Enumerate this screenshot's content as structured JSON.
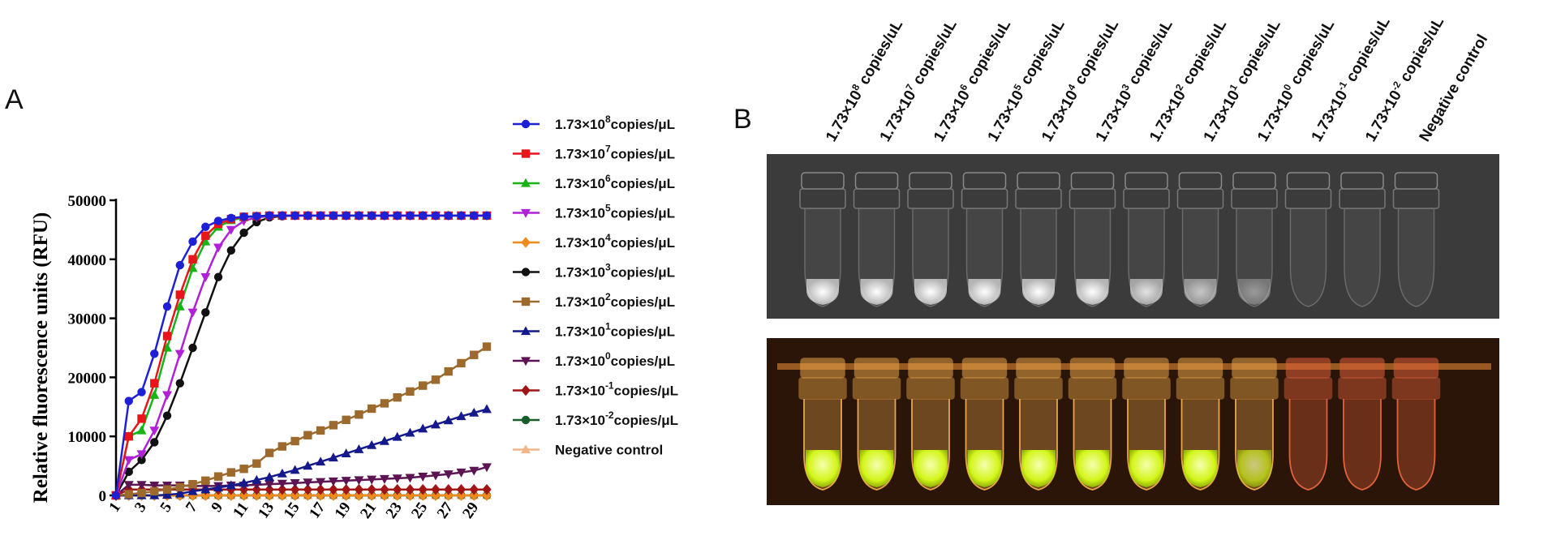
{
  "panels": {
    "a_label": "A",
    "b_label": "B"
  },
  "chart_data": {
    "type": "line",
    "ylabel": "Relative fluorescence units (RFU)",
    "xlabel": "",
    "xlim": [
      1,
      30
    ],
    "ylim": [
      0,
      50000
    ],
    "x_ticks": [
      1,
      3,
      5,
      7,
      9,
      11,
      13,
      15,
      17,
      19,
      21,
      23,
      25,
      27,
      29
    ],
    "y_ticks": [
      0,
      10000,
      20000,
      30000,
      40000,
      50000
    ],
    "legend_position": "right",
    "grid": false,
    "series": [
      {
        "name": "1.73×10",
        "exp": "8",
        "unit": "copies/μL",
        "color": "#1f1fd6",
        "marker": "circle",
        "values": [
          0,
          16000,
          17500,
          24000,
          32000,
          39000,
          43000,
          45500,
          46500,
          47000,
          47200,
          47300,
          47400,
          47400,
          47400,
          47400,
          47400,
          47400,
          47400,
          47400,
          47400,
          47400,
          47400,
          47400,
          47400,
          47400,
          47400,
          47400,
          47400,
          47400
        ]
      },
      {
        "name": "1.73×10",
        "exp": "7",
        "unit": "copies/μL",
        "color": "#e8151b",
        "marker": "square",
        "values": [
          0,
          10000,
          13000,
          19000,
          27000,
          34000,
          40000,
          44000,
          46000,
          46800,
          47200,
          47300,
          47400,
          47400,
          47400,
          47400,
          47400,
          47400,
          47400,
          47400,
          47400,
          47400,
          47400,
          47400,
          47400,
          47400,
          47400,
          47400,
          47400,
          47400
        ]
      },
      {
        "name": "1.73×10",
        "exp": "6",
        "unit": "copies/μL",
        "color": "#17b317",
        "marker": "triangle-up",
        "values": [
          0,
          10000,
          11000,
          17000,
          25000,
          32000,
          38500,
          43000,
          45500,
          46600,
          47100,
          47300,
          47400,
          47400,
          47400,
          47400,
          47400,
          47400,
          47400,
          47400,
          47400,
          47400,
          47400,
          47400,
          47400,
          47400,
          47400,
          47400,
          47400,
          47400
        ]
      },
      {
        "name": "1.73×10",
        "exp": "5",
        "unit": "copies/μL",
        "color": "#b021d6",
        "marker": "triangle-down",
        "values": [
          0,
          6000,
          7000,
          11000,
          17000,
          24000,
          31000,
          37000,
          42000,
          45000,
          46500,
          47100,
          47300,
          47400,
          47400,
          47400,
          47400,
          47400,
          47400,
          47400,
          47400,
          47400,
          47400,
          47400,
          47400,
          47400,
          47400,
          47400,
          47400,
          47400
        ]
      },
      {
        "name": "1.73×10",
        "exp": "4",
        "unit": "copies/μL",
        "color": "#f08a1c",
        "marker": "diamond",
        "values": [
          0,
          0,
          0,
          0,
          0,
          0,
          0,
          0,
          0,
          0,
          0,
          0,
          0,
          0,
          0,
          0,
          0,
          0,
          0,
          0,
          0,
          0,
          0,
          0,
          0,
          0,
          0,
          0,
          0,
          0
        ]
      },
      {
        "name": "1.73×10",
        "exp": "3",
        "unit": "copies/μL",
        "color": "#111111",
        "marker": "circle",
        "values": [
          0,
          4000,
          6000,
          9000,
          13500,
          19000,
          25000,
          31000,
          37000,
          41500,
          44500,
          46300,
          47100,
          47300,
          47400,
          47400,
          47400,
          47400,
          47400,
          47400,
          47400,
          47400,
          47400,
          47400,
          47400,
          47400,
          47400,
          47400,
          47400,
          47400
        ]
      },
      {
        "name": "1.73×10",
        "exp": "2",
        "unit": "copies/μL",
        "color": "#9b6a2c",
        "marker": "square",
        "values": [
          0,
          200,
          400,
          700,
          1000,
          1400,
          1900,
          2500,
          3200,
          3900,
          4500,
          5400,
          7200,
          8300,
          9200,
          10200,
          11000,
          11900,
          12800,
          13700,
          14700,
          15600,
          16600,
          17600,
          18600,
          19600,
          21000,
          22400,
          23800,
          25200
        ]
      },
      {
        "name": "1.73×10",
        "exp": "1",
        "unit": "copies/μL",
        "color": "#141a8c",
        "marker": "triangle-up",
        "values": [
          0,
          0,
          0,
          0,
          100,
          300,
          700,
          1000,
          1300,
          1700,
          2100,
          2600,
          3100,
          3700,
          4300,
          5000,
          5700,
          6400,
          7100,
          7800,
          8500,
          9200,
          9900,
          10600,
          11300,
          12000,
          12700,
          13400,
          14000,
          14600
        ]
      },
      {
        "name": "1.73×10",
        "exp": "0",
        "unit": "copies/μL",
        "color": "#5c1452",
        "marker": "triangle-down",
        "values": [
          0,
          1800,
          1800,
          1700,
          1700,
          1700,
          1600,
          1600,
          1600,
          1700,
          1700,
          1800,
          1900,
          2000,
          2100,
          2200,
          2300,
          2400,
          2500,
          2600,
          2700,
          2800,
          2900,
          3000,
          3200,
          3400,
          3600,
          3900,
          4200,
          4800
        ]
      },
      {
        "name": "1.73×10",
        "exp": "-1",
        "unit": "copies/μL",
        "color": "#a01515",
        "marker": "diamond",
        "values": [
          0,
          1000,
          1000,
          1000,
          1000,
          1000,
          1000,
          1000,
          1000,
          1000,
          1000,
          1000,
          1000,
          1000,
          1000,
          1000,
          1000,
          1000,
          1000,
          1000,
          1000,
          1000,
          1000,
          1000,
          1000,
          1000,
          1000,
          1000,
          1000,
          1000
        ]
      },
      {
        "name": "1.73×10",
        "exp": "-2",
        "unit": "copies/μL",
        "color": "#1a5c2a",
        "marker": "circle",
        "values": [
          0,
          0,
          0,
          0,
          0,
          0,
          0,
          0,
          0,
          0,
          0,
          0,
          0,
          0,
          0,
          0,
          0,
          0,
          0,
          0,
          0,
          0,
          0,
          0,
          0,
          0,
          0,
          0,
          0,
          0
        ]
      },
      {
        "name": "Negative control",
        "exp": "",
        "unit": "",
        "color": "#f2b68a",
        "marker": "triangle-up",
        "values": [
          0,
          0,
          0,
          0,
          0,
          0,
          0,
          0,
          0,
          0,
          0,
          0,
          0,
          0,
          0,
          0,
          0,
          0,
          0,
          0,
          0,
          0,
          0,
          0,
          0,
          0,
          0,
          0,
          0,
          0
        ]
      }
    ]
  },
  "panel_b": {
    "tube_labels": [
      {
        "base": "1.73×10",
        "exp": "8",
        "unit": " copies/uL"
      },
      {
        "base": "1.73×10",
        "exp": "7",
        "unit": " copies/uL"
      },
      {
        "base": "1.73×10",
        "exp": "6",
        "unit": " copies/uL"
      },
      {
        "base": "1.73×10",
        "exp": "5",
        "unit": " copies/uL"
      },
      {
        "base": "1.73×10",
        "exp": "4",
        "unit": " copies/uL"
      },
      {
        "base": "1.73×10",
        "exp": "3",
        "unit": " copies/uL"
      },
      {
        "base": "1.73×10",
        "exp": "2",
        "unit": " copies/uL"
      },
      {
        "base": "1.73×10",
        "exp": "1",
        "unit": " copies/uL"
      },
      {
        "base": "1.73×10",
        "exp": "0",
        "unit": " copies/uL"
      },
      {
        "base": "1.73×10",
        "exp": "-1",
        "unit": " copies/uL"
      },
      {
        "base": "1.73×10",
        "exp": "-2",
        "unit": " copies/uL"
      },
      {
        "base": "Negative control",
        "exp": "",
        "unit": ""
      }
    ],
    "gray_panel": {
      "bg": "#3b3b3b",
      "intensity": [
        1,
        1,
        1,
        1,
        1,
        1,
        0.85,
        0.7,
        0.45,
        0,
        0,
        0
      ]
    },
    "color_panel": {
      "bg": "#2a1508",
      "tube_color": "#e8a54a",
      "positive_color": "#d8ff1a",
      "negative_tube_color": "#e0623a",
      "positive": [
        1,
        1,
        1,
        1,
        1,
        1,
        1,
        1,
        0.7,
        0,
        0,
        0
      ]
    }
  }
}
